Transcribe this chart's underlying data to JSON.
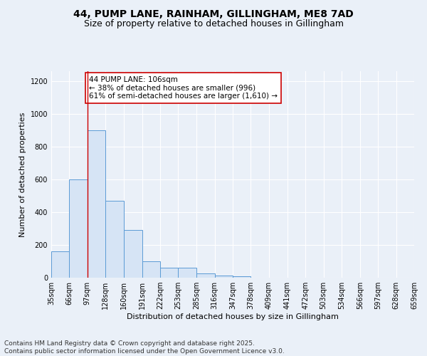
{
  "title_line1": "44, PUMP LANE, RAINHAM, GILLINGHAM, ME8 7AD",
  "title_line2": "Size of property relative to detached houses in Gillingham",
  "xlabel": "Distribution of detached houses by size in Gillingham",
  "ylabel": "Number of detached properties",
  "footer_line1": "Contains HM Land Registry data © Crown copyright and database right 2025.",
  "footer_line2": "Contains public sector information licensed under the Open Government Licence v3.0.",
  "bins": [
    35,
    66,
    97,
    128,
    160,
    191,
    222,
    253,
    285,
    316,
    347,
    378,
    409,
    441,
    472,
    503,
    534,
    566,
    597,
    628,
    659
  ],
  "bin_labels": [
    "35sqm",
    "66sqm",
    "97sqm",
    "128sqm",
    "160sqm",
    "191sqm",
    "222sqm",
    "253sqm",
    "285sqm",
    "316sqm",
    "347sqm",
    "378sqm",
    "409sqm",
    "441sqm",
    "472sqm",
    "503sqm",
    "534sqm",
    "566sqm",
    "597sqm",
    "628sqm",
    "659sqm"
  ],
  "counts": [
    160,
    600,
    900,
    470,
    290,
    100,
    60,
    60,
    25,
    15,
    10,
    0,
    0,
    0,
    0,
    0,
    0,
    0,
    0,
    0
  ],
  "bar_facecolor": "#d6e4f5",
  "bar_edgecolor": "#5b9bd5",
  "vline_x": 97,
  "vline_color": "#cc0000",
  "annotation_text": "44 PUMP LANE: 106sqm\n← 38% of detached houses are smaller (996)\n61% of semi-detached houses are larger (1,610) →",
  "annotation_box_color": "#cc0000",
  "annotation_text_color": "#000000",
  "ylim": [
    0,
    1260
  ],
  "yticks": [
    0,
    200,
    400,
    600,
    800,
    1000,
    1200
  ],
  "background_color": "#eaf0f8",
  "grid_color": "#ffffff",
  "title_fontsize": 10,
  "subtitle_fontsize": 9,
  "axis_label_fontsize": 8,
  "tick_fontsize": 7,
  "footer_fontsize": 6.5,
  "annotation_fontsize": 7.5
}
